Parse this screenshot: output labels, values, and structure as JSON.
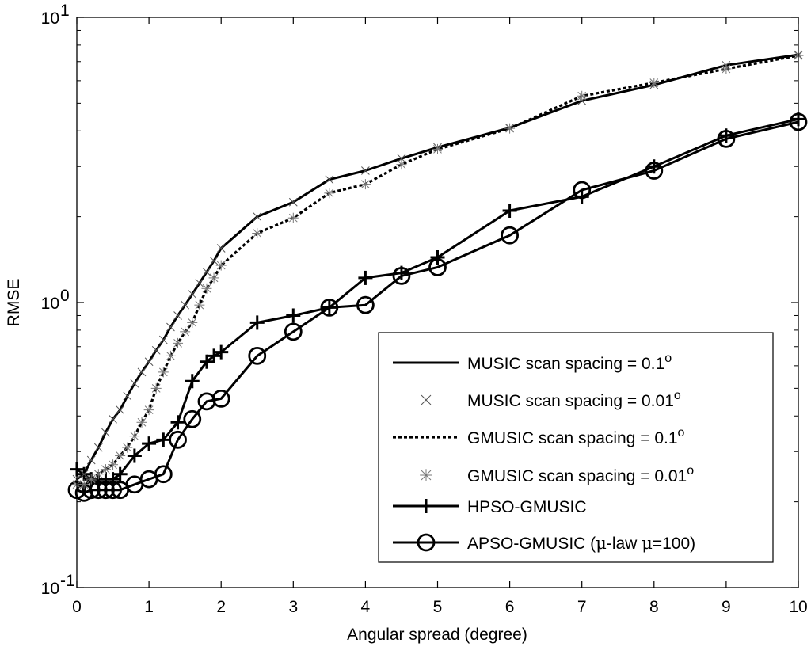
{
  "chart_data": {
    "type": "line",
    "xlabel": "Angular spread (degree)",
    "ylabel": "RMSE",
    "xlim": [
      0,
      10
    ],
    "ylim": [
      0.1,
      10
    ],
    "yscale": "log",
    "x_ticks": [
      "0",
      "1",
      "2",
      "3",
      "4",
      "5",
      "6",
      "7",
      "8",
      "9",
      "10"
    ],
    "y_ticks": [
      {
        "base": "10",
        "exp": "-1"
      },
      {
        "base": "10",
        "exp": "0"
      },
      {
        "base": "10",
        "exp": "1"
      }
    ],
    "grid": false,
    "legend_position": "bottom-right",
    "series": [
      {
        "name": "MUSIC scan spacing = 0.1",
        "name_sup": "o",
        "style": "solid",
        "color": "#000000",
        "x": [
          0,
          0.1,
          0.2,
          0.3,
          0.4,
          0.5,
          0.6,
          0.7,
          0.8,
          0.9,
          1.0,
          1.1,
          1.2,
          1.3,
          1.4,
          1.5,
          1.6,
          1.7,
          1.8,
          1.9,
          2.0,
          2.5,
          3.0,
          3.5,
          4.0,
          4.5,
          5.0,
          6.0,
          7.0,
          8.0,
          9.0,
          10.0
        ],
        "y": [
          0.24,
          0.25,
          0.28,
          0.31,
          0.35,
          0.39,
          0.42,
          0.47,
          0.52,
          0.57,
          0.62,
          0.68,
          0.74,
          0.82,
          0.9,
          0.98,
          1.07,
          1.17,
          1.28,
          1.4,
          1.55,
          2.0,
          2.25,
          2.7,
          2.9,
          3.2,
          3.5,
          4.1,
          5.1,
          5.8,
          6.8,
          7.4
        ]
      },
      {
        "name": "MUSIC scan spacing = 0.01",
        "name_sup": "o",
        "style": "x-marker",
        "color": "#555555",
        "x": [
          0,
          0.1,
          0.2,
          0.3,
          0.4,
          0.5,
          0.6,
          0.7,
          0.8,
          0.9,
          1.0,
          1.1,
          1.2,
          1.3,
          1.4,
          1.5,
          1.6,
          1.7,
          1.8,
          1.9,
          2.0,
          2.5,
          3.0,
          3.5,
          4.0,
          4.5,
          5.0,
          6.0,
          7.0,
          8.0,
          9.0,
          10.0
        ],
        "y": [
          0.24,
          0.25,
          0.28,
          0.31,
          0.35,
          0.39,
          0.42,
          0.47,
          0.52,
          0.57,
          0.62,
          0.68,
          0.74,
          0.82,
          0.9,
          0.98,
          1.07,
          1.17,
          1.28,
          1.4,
          1.55,
          2.0,
          2.25,
          2.7,
          2.9,
          3.2,
          3.5,
          4.1,
          5.1,
          5.8,
          6.8,
          7.4
        ]
      },
      {
        "name": "GMUSIC scan spacing = 0.1",
        "name_sup": "o",
        "style": "dotted",
        "color": "#000000",
        "x": [
          0,
          0.1,
          0.2,
          0.3,
          0.4,
          0.5,
          0.6,
          0.7,
          0.8,
          0.9,
          1.0,
          1.1,
          1.2,
          1.3,
          1.4,
          1.5,
          1.6,
          1.7,
          1.8,
          1.9,
          2.0,
          2.5,
          3.0,
          3.5,
          4.0,
          4.5,
          5.0,
          6.0,
          7.0,
          8.0,
          9.0,
          10.0
        ],
        "y": [
          0.23,
          0.23,
          0.24,
          0.25,
          0.26,
          0.27,
          0.29,
          0.31,
          0.34,
          0.38,
          0.42,
          0.5,
          0.57,
          0.65,
          0.72,
          0.79,
          0.85,
          0.98,
          1.12,
          1.22,
          1.35,
          1.75,
          1.98,
          2.42,
          2.6,
          3.05,
          3.45,
          4.08,
          5.3,
          5.9,
          6.6,
          7.35
        ]
      },
      {
        "name": "GMUSIC scan spacing = 0.01",
        "name_sup": "o",
        "style": "star-marker",
        "color": "#777777",
        "x": [
          0,
          0.1,
          0.2,
          0.3,
          0.4,
          0.5,
          0.6,
          0.7,
          0.8,
          0.9,
          1.0,
          1.1,
          1.2,
          1.3,
          1.4,
          1.5,
          1.6,
          1.7,
          1.8,
          1.9,
          2.0,
          2.5,
          3.0,
          3.5,
          4.0,
          4.5,
          5.0,
          6.0,
          7.0,
          8.0,
          9.0,
          10.0
        ],
        "y": [
          0.23,
          0.23,
          0.24,
          0.25,
          0.26,
          0.27,
          0.29,
          0.31,
          0.34,
          0.38,
          0.42,
          0.5,
          0.57,
          0.65,
          0.72,
          0.79,
          0.85,
          0.98,
          1.12,
          1.22,
          1.35,
          1.75,
          1.98,
          2.42,
          2.6,
          3.05,
          3.45,
          4.08,
          5.3,
          5.9,
          6.6,
          7.35
        ]
      },
      {
        "name": "HPSO-GMUSIC",
        "style": "plus-line",
        "color": "#000000",
        "x": [
          0,
          0.1,
          0.2,
          0.3,
          0.4,
          0.5,
          0.6,
          0.8,
          1.0,
          1.2,
          1.4,
          1.6,
          1.8,
          1.9,
          2.0,
          2.5,
          3.0,
          3.5,
          4.0,
          4.5,
          5.0,
          6.0,
          7.0,
          8.0,
          9.0,
          10.0
        ],
        "y": [
          0.26,
          0.25,
          0.24,
          0.24,
          0.24,
          0.24,
          0.25,
          0.29,
          0.32,
          0.33,
          0.38,
          0.53,
          0.62,
          0.65,
          0.67,
          0.85,
          0.9,
          0.96,
          1.22,
          1.27,
          1.44,
          2.1,
          2.35,
          3.0,
          3.85,
          4.4
        ]
      },
      {
        "name": "APSO-GMUSIC (",
        "name_greek": "μ",
        "name_mid": "-law ",
        "name_greek2": "μ",
        "name_end": "=100)",
        "style": "circle-line",
        "color": "#000000",
        "x": [
          0,
          0.1,
          0.2,
          0.3,
          0.4,
          0.5,
          0.6,
          0.8,
          1.0,
          1.2,
          1.4,
          1.6,
          1.8,
          2.0,
          2.5,
          3.0,
          3.5,
          4.0,
          4.5,
          5.0,
          6.0,
          7.0,
          8.0,
          9.0,
          10.0
        ],
        "y": [
          0.22,
          0.215,
          0.22,
          0.22,
          0.22,
          0.22,
          0.22,
          0.23,
          0.24,
          0.25,
          0.33,
          0.39,
          0.45,
          0.46,
          0.65,
          0.79,
          0.96,
          0.98,
          1.24,
          1.33,
          1.72,
          2.48,
          2.9,
          3.75,
          4.3
        ]
      }
    ]
  }
}
